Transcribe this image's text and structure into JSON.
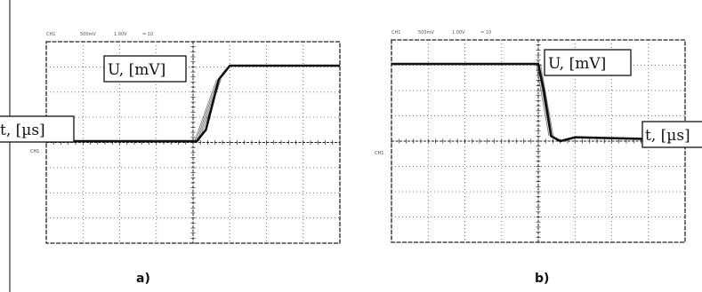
{
  "colors": {
    "background": "#ffffff",
    "trace": "#111111",
    "grid": "#555555",
    "frame": "#222222"
  },
  "chart_data": [
    {
      "type": "line",
      "panel_caption": "a)",
      "header": [
        "CH1",
        "500mV",
        "1.00V",
        "= 10"
      ],
      "ground_marker": "CH1",
      "xlabel": "t, [µs]",
      "ylabel": "U, [mV]",
      "grid": true,
      "divisions": {
        "x": 8,
        "y": 8
      },
      "xlim": [
        0,
        8
      ],
      "ylim": [
        -4,
        4
      ],
      "series": [
        {
          "x": [
            0,
            4.1,
            4.35,
            4.7,
            5.0,
            8.0
          ],
          "y": [
            0.05,
            0.05,
            0.5,
            2.5,
            3.05,
            3.05
          ]
        }
      ]
    },
    {
      "type": "line",
      "panel_caption": "b)",
      "header": [
        "CH1",
        "500mV",
        "1.00V",
        "= 10"
      ],
      "ground_marker": "CH1",
      "xlabel": "t, [µs]",
      "ylabel": "U, [mV]",
      "grid": true,
      "divisions": {
        "x": 8,
        "y": 8
      },
      "xlim": [
        0,
        8
      ],
      "ylim": [
        -4,
        4
      ],
      "series": [
        {
          "x": [
            0,
            4.0,
            4.15,
            4.35,
            4.6,
            5.0,
            8.0
          ],
          "y": [
            3.05,
            3.05,
            2.0,
            0.2,
            0.0,
            0.15,
            0.05
          ]
        }
      ]
    }
  ]
}
